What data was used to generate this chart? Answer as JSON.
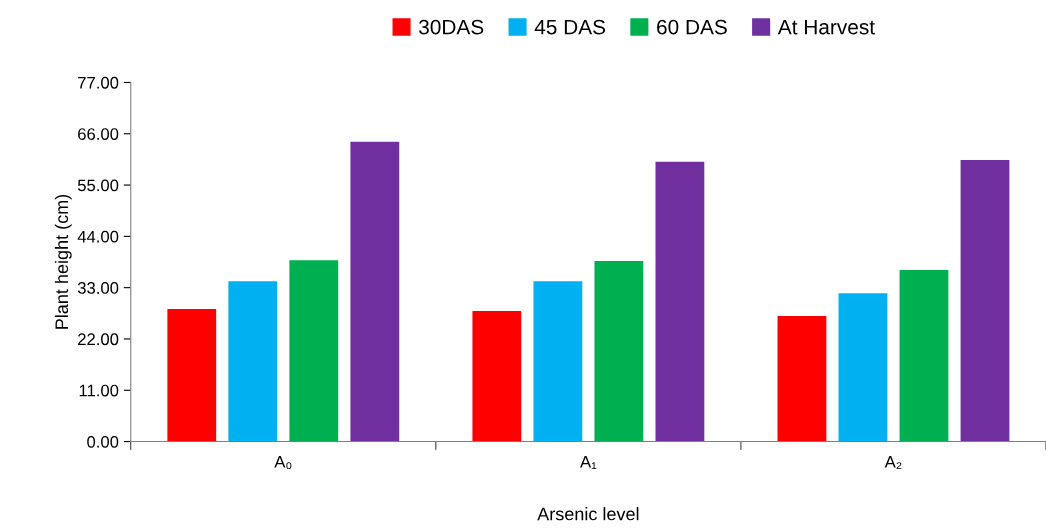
{
  "chart_data": {
    "type": "bar",
    "xlabel": "Arsenic level",
    "ylabel": "Plant height (cm)",
    "categories": [
      "A₀",
      "A₁",
      "A₂"
    ],
    "series": [
      {
        "name": "30DAS",
        "color": "#ff0000",
        "values": [
          28.4,
          28.0,
          26.9
        ]
      },
      {
        "name": "45 DAS",
        "color": "#00b0f0",
        "values": [
          34.4,
          34.4,
          31.8
        ]
      },
      {
        "name": "60 DAS",
        "color": "#00b050",
        "values": [
          38.9,
          38.7,
          36.8
        ]
      },
      {
        "name": "At Harvest",
        "color": "#7030a0",
        "values": [
          64.3,
          60.0,
          60.4
        ]
      }
    ],
    "ylim": [
      0,
      77
    ],
    "yticks": [
      {
        "value": 0,
        "label": "0.00"
      },
      {
        "value": 11,
        "label": "11.00"
      },
      {
        "value": 22,
        "label": "22.00"
      },
      {
        "value": 33,
        "label": "33.00"
      },
      {
        "value": 44,
        "label": "44.00"
      },
      {
        "value": 55,
        "label": "55.00"
      },
      {
        "value": 66,
        "label": "66.00"
      },
      {
        "value": 77,
        "label": "77.00"
      }
    ],
    "grid": false,
    "legend": "top"
  }
}
